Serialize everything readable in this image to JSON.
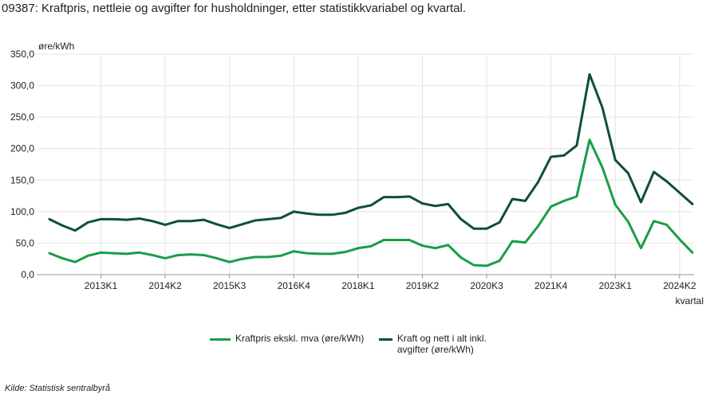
{
  "title": "09387: Kraftpris, nettleie og avgifter for husholdninger, etter statistikkvariabel og kvartal.",
  "source": "Kilde:  Statistisk sentralbyrå",
  "colors": {
    "series1": "#1a9d49",
    "series2": "#0f4f38",
    "grid": "#e4e4e4",
    "axis": "#999999"
  },
  "chart_data": {
    "type": "line",
    "ylabel": "øre/kWh",
    "xlabel": "kvartal",
    "ylim": [
      0,
      350
    ],
    "yticks": [
      0,
      50,
      100,
      150,
      200,
      250,
      300,
      350
    ],
    "ytick_labels": [
      "0,0",
      "50,0",
      "100,0",
      "150,0",
      "200,0",
      "250,0",
      "300,0",
      "350,0"
    ],
    "grid": true,
    "legend_position": "bottom",
    "x": [
      "2012K1",
      "2012K2",
      "2012K3",
      "2012K4",
      "2013K1",
      "2013K2",
      "2013K3",
      "2013K4",
      "2014K1",
      "2014K2",
      "2014K3",
      "2014K4",
      "2015K1",
      "2015K2",
      "2015K3",
      "2015K4",
      "2016K1",
      "2016K2",
      "2016K3",
      "2016K4",
      "2017K1",
      "2017K2",
      "2017K3",
      "2017K4",
      "2018K1",
      "2018K2",
      "2018K3",
      "2018K4",
      "2019K1",
      "2019K2",
      "2019K3",
      "2019K4",
      "2020K1",
      "2020K2",
      "2020K3",
      "2020K4",
      "2021K1",
      "2021K2",
      "2021K3",
      "2021K4",
      "2022K1",
      "2022K2",
      "2022K3",
      "2022K4",
      "2023K1",
      "2023K2",
      "2023K3",
      "2023K4",
      "2024K1",
      "2024K2",
      "2024K3"
    ],
    "x_tick_labels": [
      "2013K1",
      "2014K2",
      "2015K3",
      "2016K4",
      "2018K1",
      "2019K2",
      "2020K3",
      "2021K4",
      "2023K1",
      "2024K2"
    ],
    "series": [
      {
        "name": "Kraftpris ekskl. mva (øre/kWh)",
        "values": [
          34,
          26,
          20,
          30,
          35,
          34,
          33,
          35,
          31,
          26,
          31,
          32,
          31,
          26,
          20,
          25,
          28,
          28,
          30,
          37,
          34,
          33,
          33,
          36,
          42,
          45,
          55,
          55,
          55,
          46,
          42,
          47,
          27,
          15,
          14,
          22,
          53,
          51,
          77,
          108,
          117,
          124,
          214,
          170,
          111,
          84,
          42,
          85,
          79,
          56,
          35
        ]
      },
      {
        "name": "Kraft og nett i alt inkl. avgifter (øre/kWh)",
        "values": [
          88,
          78,
          70,
          83,
          88,
          88,
          87,
          89,
          85,
          79,
          85,
          85,
          87,
          80,
          74,
          80,
          86,
          88,
          90,
          100,
          97,
          95,
          95,
          98,
          106,
          110,
          123,
          123,
          124,
          113,
          109,
          112,
          88,
          73,
          73,
          83,
          120,
          117,
          147,
          187,
          189,
          205,
          318,
          265,
          182,
          161,
          115,
          163,
          148,
          130,
          112
        ]
      }
    ]
  }
}
